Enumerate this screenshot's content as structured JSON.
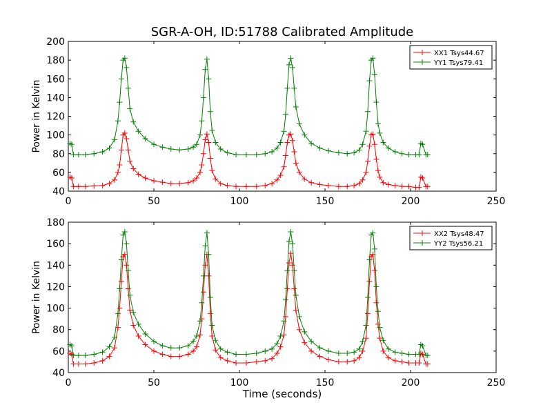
{
  "figure": {
    "title": "SGR-A-OH, ID:51788 Calibrated Amplitude"
  },
  "chart_data": [
    {
      "type": "line",
      "panel": "top",
      "title": "SGR-A-OH, ID:51788 Calibrated Amplitude",
      "xlabel": "",
      "ylabel": "Power in Kelvin",
      "xlim": [
        0,
        250
      ],
      "ylim": [
        40,
        200
      ],
      "xticks": [
        0,
        50,
        100,
        150,
        200,
        250
      ],
      "yticks": [
        40,
        60,
        80,
        100,
        120,
        140,
        160,
        180,
        200
      ],
      "grid": false,
      "legend_position": "top-right",
      "series": [
        {
          "name": "XX1 Tsys44.67",
          "color": "#ff0000",
          "marker": "+",
          "x": [
            1,
            2,
            3,
            6,
            10,
            15,
            20,
            24,
            27,
            29,
            30,
            31,
            32,
            33,
            34,
            35,
            36,
            38,
            41,
            45,
            50,
            55,
            60,
            65,
            70,
            73,
            75,
            77,
            78,
            79,
            80,
            81,
            82,
            83,
            84,
            86,
            89,
            93,
            98,
            104,
            110,
            115,
            119,
            122,
            124,
            126,
            127,
            128,
            129,
            130,
            131,
            132,
            133,
            135,
            138,
            142,
            147,
            152,
            158,
            163,
            167,
            170,
            172,
            174,
            175,
            176,
            177,
            178,
            179,
            180,
            181,
            182,
            184,
            187,
            191,
            195,
            199,
            203,
            205,
            206,
            207,
            209,
            210
          ],
          "y": [
            55,
            54,
            45,
            45,
            45,
            45.5,
            46,
            48,
            52,
            60,
            68,
            84,
            100,
            102,
            96,
            84,
            72,
            64,
            58,
            54,
            51,
            49.5,
            48,
            48,
            49,
            51,
            54,
            60,
            68,
            80,
            95,
            101,
            92,
            75,
            62,
            53,
            48,
            46,
            45,
            45,
            45,
            46,
            48,
            52,
            57,
            66,
            78,
            92,
            100,
            101,
            94,
            82,
            70,
            60,
            53,
            49,
            47,
            46,
            45,
            45,
            46,
            48,
            52,
            60,
            72,
            88,
            100,
            101,
            90,
            74,
            62,
            55,
            49,
            47,
            46,
            45,
            45,
            44,
            44,
            55,
            54,
            45,
            45
          ]
        },
        {
          "name": "YY1 Tsys79.41",
          "color": "#008000",
          "marker": "+",
          "x": [
            1,
            2,
            3,
            6,
            10,
            15,
            20,
            24,
            27,
            29,
            30,
            31,
            32,
            33,
            34,
            35,
            36,
            38,
            41,
            45,
            50,
            55,
            60,
            65,
            70,
            73,
            75,
            77,
            78,
            79,
            80,
            81,
            82,
            83,
            84,
            86,
            89,
            93,
            98,
            104,
            110,
            115,
            119,
            122,
            124,
            126,
            127,
            128,
            129,
            130,
            131,
            132,
            133,
            135,
            138,
            142,
            147,
            152,
            158,
            163,
            167,
            170,
            172,
            174,
            175,
            176,
            177,
            178,
            179,
            180,
            181,
            182,
            184,
            187,
            191,
            195,
            199,
            203,
            205,
            206,
            207,
            209,
            210
          ],
          "y": [
            91,
            90,
            79,
            79,
            79,
            80,
            82,
            86,
            95,
            115,
            135,
            160,
            180,
            182,
            172,
            150,
            128,
            114,
            104,
            96,
            90,
            87,
            85,
            84,
            85,
            87,
            90,
            100,
            115,
            140,
            170,
            181,
            160,
            125,
            105,
            92,
            85,
            81,
            79,
            79,
            79,
            80,
            82,
            86,
            92,
            104,
            122,
            150,
            175,
            182,
            172,
            150,
            130,
            112,
            100,
            91,
            86,
            83,
            81,
            80,
            81,
            84,
            90,
            104,
            125,
            158,
            180,
            182,
            165,
            135,
            112,
            102,
            92,
            86,
            82,
            80,
            79,
            79,
            79,
            91,
            90,
            79,
            79
          ]
        }
      ]
    },
    {
      "type": "line",
      "panel": "bottom",
      "title": "",
      "xlabel": "Time (seconds)",
      "ylabel": "Power in Kelvin",
      "xlim": [
        0,
        250
      ],
      "ylim": [
        40,
        180
      ],
      "xticks": [
        0,
        50,
        100,
        150,
        200,
        250
      ],
      "yticks": [
        40,
        60,
        80,
        100,
        120,
        140,
        160,
        180
      ],
      "grid": false,
      "legend_position": "top-right",
      "series": [
        {
          "name": "XX2 Tsys48.47",
          "color": "#ff0000",
          "marker": "+",
          "x": [
            1,
            2,
            3,
            6,
            10,
            15,
            20,
            24,
            27,
            29,
            30,
            31,
            32,
            33,
            34,
            35,
            36,
            38,
            41,
            45,
            50,
            55,
            60,
            65,
            70,
            73,
            75,
            77,
            78,
            79,
            80,
            81,
            82,
            83,
            84,
            86,
            89,
            93,
            98,
            104,
            110,
            115,
            119,
            122,
            124,
            126,
            127,
            128,
            129,
            130,
            131,
            132,
            133,
            135,
            138,
            142,
            147,
            152,
            158,
            163,
            167,
            170,
            172,
            174,
            175,
            176,
            177,
            178,
            179,
            180,
            181,
            182,
            184,
            187,
            191,
            195,
            199,
            203,
            205,
            206,
            207,
            209,
            210
          ],
          "y": [
            58,
            57,
            48,
            48,
            48,
            49,
            51,
            55,
            63,
            82,
            100,
            125,
            148,
            150,
            140,
            118,
            98,
            84,
            74,
            66,
            60,
            57,
            55,
            55,
            57,
            60,
            64,
            75,
            90,
            115,
            140,
            150,
            130,
            95,
            74,
            61,
            54,
            51,
            49,
            49,
            50,
            51,
            53,
            58,
            64,
            75,
            92,
            118,
            142,
            151,
            140,
            118,
            98,
            80,
            68,
            60,
            55,
            52,
            50,
            50,
            51,
            54,
            60,
            72,
            95,
            125,
            148,
            150,
            135,
            105,
            85,
            72,
            60,
            54,
            51,
            50,
            49,
            49,
            49,
            58,
            57,
            48,
            48
          ]
        },
        {
          "name": "YY2 Tsys56.21",
          "color": "#008000",
          "marker": "+",
          "x": [
            1,
            2,
            3,
            6,
            10,
            15,
            20,
            24,
            27,
            29,
            30,
            31,
            32,
            33,
            34,
            35,
            36,
            38,
            41,
            45,
            50,
            55,
            60,
            65,
            70,
            73,
            75,
            77,
            78,
            79,
            80,
            81,
            82,
            83,
            84,
            86,
            89,
            93,
            98,
            104,
            110,
            115,
            119,
            122,
            124,
            126,
            127,
            128,
            129,
            130,
            131,
            132,
            133,
            135,
            138,
            142,
            147,
            152,
            158,
            163,
            167,
            170,
            172,
            174,
            175,
            176,
            177,
            178,
            179,
            180,
            181,
            182,
            184,
            187,
            191,
            195,
            199,
            203,
            205,
            206,
            207,
            209,
            210
          ],
          "y": [
            66,
            65,
            56,
            56,
            56,
            57,
            59,
            64,
            73,
            95,
            118,
            145,
            168,
            171,
            160,
            135,
            112,
            96,
            85,
            76,
            69,
            65,
            63,
            63,
            65,
            69,
            74,
            88,
            105,
            130,
            158,
            170,
            150,
            110,
            84,
            70,
            62,
            59,
            57,
            57,
            58,
            60,
            62,
            67,
            74,
            88,
            108,
            135,
            162,
            171,
            160,
            135,
            112,
            92,
            78,
            69,
            63,
            60,
            58,
            58,
            59,
            62,
            69,
            84,
            110,
            145,
            168,
            170,
            155,
            120,
            97,
            82,
            70,
            62,
            59,
            58,
            57,
            57,
            57,
            66,
            65,
            56,
            56
          ]
        }
      ]
    }
  ]
}
